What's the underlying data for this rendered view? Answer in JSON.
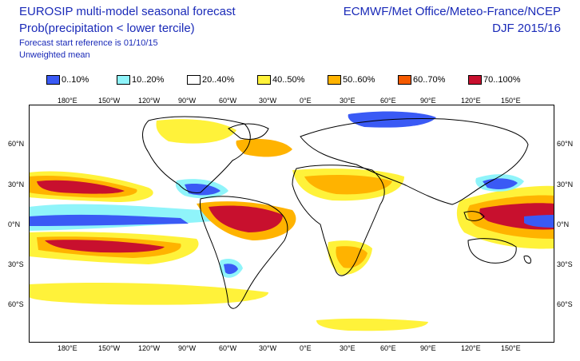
{
  "header": {
    "title_line1": "EUROSIP multi-model seasonal forecast",
    "title_line2": "Prob(precipitation < lower tercile)",
    "note_line1": "Forecast start reference is 01/10/15",
    "note_line2": "Unweighted mean",
    "credit": "ECMWF/Met Office/Meteo-France/NCEP",
    "season": "DJF 2015/16"
  },
  "legend": [
    {
      "label": "0..10%",
      "color": "#3a5af5"
    },
    {
      "label": "10..20%",
      "color": "#8ff4fa"
    },
    {
      "label": "20..40%",
      "color": "#ffffff"
    },
    {
      "label": "40..50%",
      "color": "#fff23a"
    },
    {
      "label": "50..60%",
      "color": "#ffb300"
    },
    {
      "label": "60..70%",
      "color": "#f55a00"
    },
    {
      "label": "70..100%",
      "color": "#c8102e"
    }
  ],
  "axes": {
    "lon_labels": [
      "180°E",
      "150°W",
      "120°W",
      "90°W",
      "60°W",
      "30°W",
      "0°E",
      "30°E",
      "60°E",
      "90°E",
      "120°E",
      "150°E"
    ],
    "lat_labels": [
      "60°N",
      "30°N",
      "0°N",
      "30°S",
      "60°S"
    ]
  },
  "map": {
    "ocean_color": "#ffffff",
    "coast_color": "#000000"
  }
}
